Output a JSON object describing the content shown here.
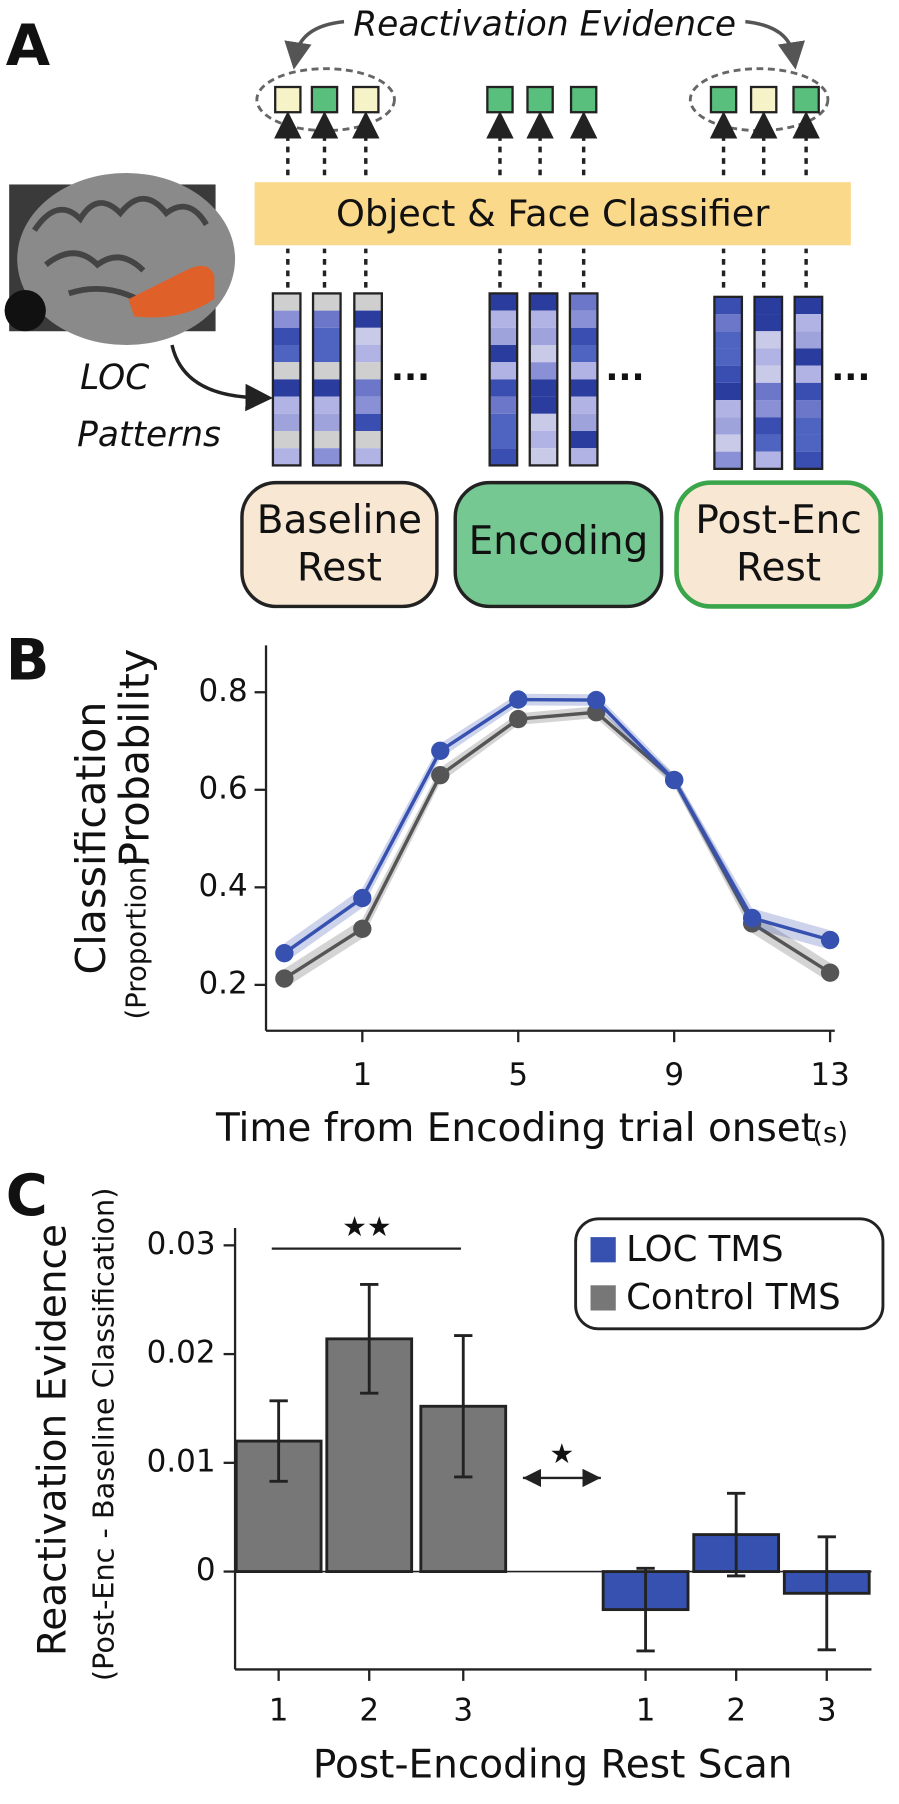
{
  "panel_labels": [
    "A",
    "B",
    "C"
  ],
  "diagram": {
    "reactivation_label": "Reactivation Evidence",
    "classifier": "Object & Face Classifier",
    "pattern_label": [
      "LOC",
      "Patterns"
    ],
    "conditions": [
      [
        "Baseline",
        "Rest"
      ],
      [
        "Encoding"
      ],
      [
        "Post-Enc",
        "Rest"
      ]
    ],
    "ellipsis": "···"
  },
  "chart_data": [
    {
      "type": "line",
      "y_label": [
        "Classification",
        "Probability",
        "(Proportion)"
      ],
      "x_label": "Time from Encoding trial onset",
      "x_unit": "(s)",
      "x": [
        -1,
        1,
        3,
        5,
        7,
        9,
        11,
        13
      ],
      "xlim": [
        -1.47,
        13.12
      ],
      "ylim": [
        0.106,
        0.896
      ],
      "xticks": [
        1,
        5,
        9,
        13
      ],
      "yticks": [
        0.2,
        0.4,
        0.6,
        0.8
      ],
      "series": [
        {
          "name": "LOC TMS",
          "color": "#3651b0",
          "values": [
            0.265,
            0.378,
            0.68,
            0.785,
            0.784,
            0.62,
            0.337,
            0.292
          ],
          "errors": [
            0.02,
            0.02,
            0.015,
            0.012,
            0.012,
            0.012,
            0.02,
            0.02
          ]
        },
        {
          "name": "Control TMS",
          "color": "#555555",
          "values": [
            0.213,
            0.315,
            0.63,
            0.745,
            0.759,
            0.62,
            0.326,
            0.225
          ],
          "errors": [
            0.02,
            0.02,
            0.015,
            0.012,
            0.012,
            0.012,
            0.02,
            0.02
          ]
        }
      ]
    },
    {
      "type": "bar",
      "y_label": [
        "Reactivation Evidence",
        "(Post-Enc - Baseline Classification)"
      ],
      "x_label": "Post-Encoding Rest Scan",
      "categories": [
        "1",
        "2",
        "3",
        "1",
        "2",
        "3"
      ],
      "ylim": [
        -0.009,
        0.0316
      ],
      "yticks": [
        0,
        0.01,
        0.02,
        0.03
      ],
      "series": [
        {
          "name": "LOC TMS",
          "color": "#3651b0",
          "values": [
            null,
            null,
            null,
            -0.0035,
            0.0034,
            -0.002
          ],
          "errors": [
            null,
            null,
            null,
            0.0038,
            0.0038,
            0.0052
          ]
        },
        {
          "name": "Control TMS",
          "color": "#777777",
          "values": [
            0.012,
            0.0214,
            0.0152,
            null,
            null,
            null
          ],
          "errors": [
            0.0037,
            0.005,
            0.0065,
            null,
            null,
            null
          ]
        }
      ],
      "annotations": [
        "★★",
        "★"
      ]
    }
  ]
}
